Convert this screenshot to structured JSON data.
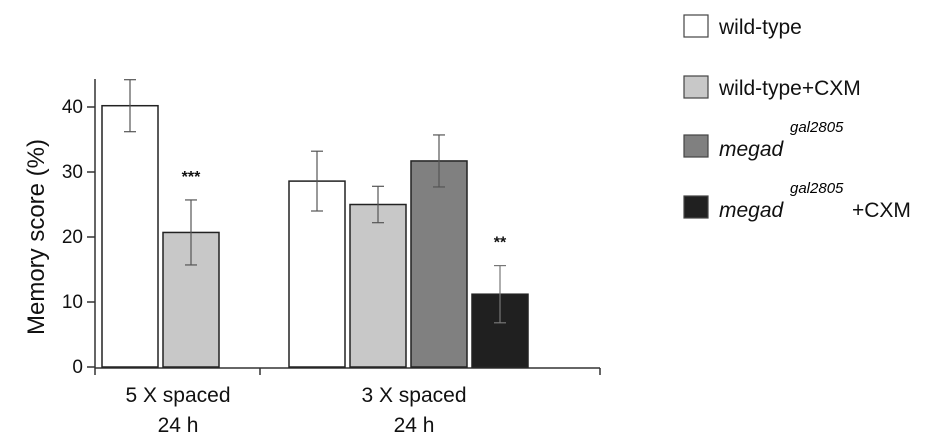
{
  "chart_data": {
    "type": "bar",
    "ylabel": "Memory score (%)",
    "ylim": [
      0,
      45
    ],
    "yticks": [
      "0",
      "10",
      "20",
      "30",
      "40"
    ],
    "ytick_values": [
      0,
      10,
      20,
      30,
      40
    ],
    "groups": [
      {
        "label_line1": "5 X spaced",
        "label_line2": "24 h",
        "bars": [
          {
            "series": 0,
            "value": 40.2,
            "err": 4.0
          },
          {
            "series": 1,
            "value": 20.7,
            "err": 5.0,
            "annotation": "***"
          }
        ]
      },
      {
        "label_line1": "3 X spaced",
        "label_line2": "24 h",
        "bars": [
          {
            "series": 0,
            "value": 28.6,
            "err": 4.6
          },
          {
            "series": 1,
            "value": 25.0,
            "err": 2.8
          },
          {
            "series": 2,
            "value": 31.7,
            "err": 4.0
          },
          {
            "series": 3,
            "value": 11.2,
            "err": 4.4,
            "annotation": "**"
          }
        ]
      }
    ],
    "series": [
      {
        "name": "wild-type",
        "color": "#ffffff"
      },
      {
        "name": "wild-type+CXM",
        "color": "#c8c8c8"
      },
      {
        "name": "megad",
        "sup": "gal2805",
        "color": "#808080"
      },
      {
        "name": "megad",
        "sup": "gal2805",
        "suffix": "+CXM",
        "color": "#202020"
      }
    ],
    "grid": false,
    "legend_position": "top-right"
  }
}
